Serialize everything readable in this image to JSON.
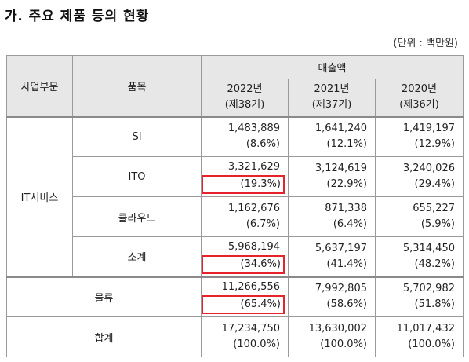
{
  "heading": "가. 주요 제품 등의 현황",
  "unit": "(단위 : 백만원)",
  "header": {
    "segment": "사업부문",
    "product": "품목",
    "sales": "매출액",
    "years": [
      {
        "year": "2022년",
        "term": "(제38기)"
      },
      {
        "year": "2021년",
        "term": "(제37기)"
      },
      {
        "year": "2020년",
        "term": "(제36기)"
      }
    ]
  },
  "rows": [
    {
      "segment": "IT서비스",
      "product": "SI",
      "values": [
        {
          "amount": "1,483,889",
          "ratio": "(8.6%)"
        },
        {
          "amount": "1,641,240",
          "ratio": "(12.1%)"
        },
        {
          "amount": "1,419,197",
          "ratio": "(12.9%)"
        }
      ]
    },
    {
      "product": "ITO",
      "values": [
        {
          "amount": "3,321,629",
          "ratio": "(19.3%)"
        },
        {
          "amount": "3,124,619",
          "ratio": "(22.9%)"
        },
        {
          "amount": "3,240,026",
          "ratio": "(29.4%)"
        }
      ]
    },
    {
      "product": "클라우드",
      "values": [
        {
          "amount": "1,162,676",
          "ratio": "(6.7%)"
        },
        {
          "amount": "871,338",
          "ratio": "(6.4%)"
        },
        {
          "amount": "655,227",
          "ratio": "(5.9%)"
        }
      ]
    },
    {
      "product": "소계",
      "values": [
        {
          "amount": "5,968,194",
          "ratio": "(34.6%)"
        },
        {
          "amount": "5,637,197",
          "ratio": "(41.4%)"
        },
        {
          "amount": "5,314,450",
          "ratio": "(48.2%)"
        }
      ]
    },
    {
      "segment": "물류",
      "values": [
        {
          "amount": "11,266,556",
          "ratio": "(65.4%)"
        },
        {
          "amount": "7,992,805",
          "ratio": "(58.6%)"
        },
        {
          "amount": "5,702,982",
          "ratio": "(51.8%)"
        }
      ]
    },
    {
      "segment": "합계",
      "values": [
        {
          "amount": "17,234,750",
          "ratio": "(100.0%)"
        },
        {
          "amount": "13,630,002",
          "ratio": "(100.0%)"
        },
        {
          "amount": "11,017,432",
          "ratio": "(100.0%)"
        }
      ]
    }
  ]
}
